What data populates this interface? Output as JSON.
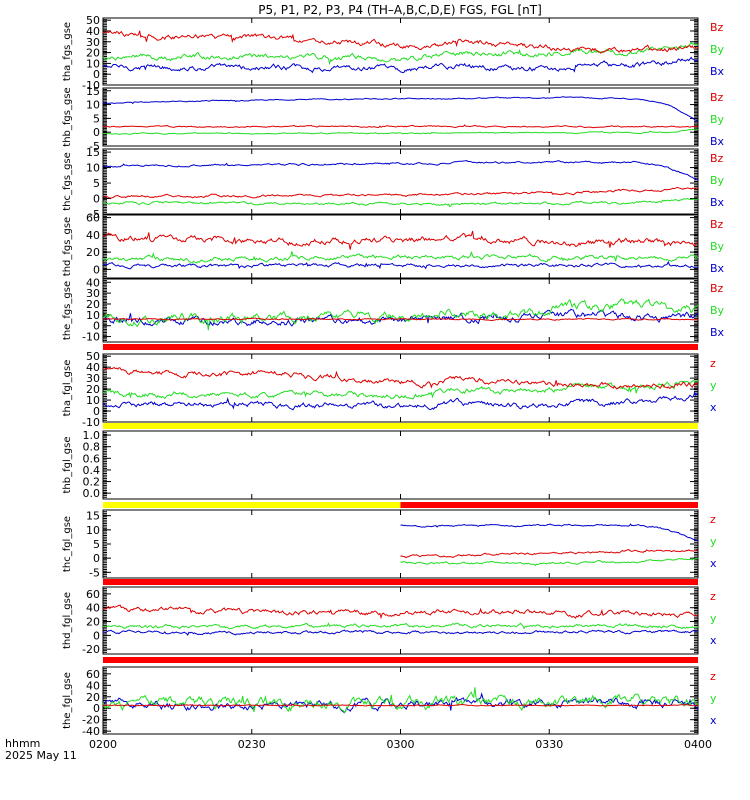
{
  "page": {
    "title": "P5,  P1,  P2,  P3,  P4  (TH–A,B,C,D,E)  FGS,  FGL  [nT]",
    "x_title_line1": "hhmm",
    "x_title_line2": "2025 May 11"
  },
  "colors": {
    "x": "#0000cc",
    "y": "#22dd22",
    "z": "#dd0000",
    "bar_red": "#ff0000",
    "bar_yellow": "#ffff00"
  },
  "chart_data": {
    "type": "line",
    "x_range": [
      "02:00",
      "04:00"
    ],
    "x_ticks": [
      "0200",
      "0230",
      "0300",
      "0330",
      "0400"
    ],
    "panels": [
      {
        "ylabel": "tha_fgs_gse",
        "ylim": [
          -10,
          52
        ],
        "yticks": [
          -10,
          0,
          10,
          20,
          30,
          40,
          50
        ],
        "legend": [
          "Bz",
          "By",
          "Bx"
        ],
        "series": [
          {
            "name": "Bz",
            "component": "z",
            "x": [
              0,
              0.1,
              0.2,
              0.3,
              0.4,
              0.45,
              0.5,
              0.55,
              0.6,
              0.7,
              0.8,
              0.9,
              1.0
            ],
            "y": [
              38,
              35,
              33,
              34,
              30,
              28,
              27,
              25,
              30,
              26,
              24,
              22,
              25
            ],
            "noise": 2.5
          },
          {
            "name": "By",
            "component": "y",
            "x": [
              0,
              0.2,
              0.4,
              0.5,
              0.6,
              0.7,
              0.8,
              0.9,
              1.0
            ],
            "y": [
              16,
              16,
              15,
              13,
              20,
              18,
              22,
              20,
              28
            ],
            "noise": 2.5
          },
          {
            "name": "Bx",
            "component": "x",
            "x": [
              0,
              0.2,
              0.4,
              0.5,
              0.6,
              0.7,
              0.8,
              0.9,
              1.0
            ],
            "y": [
              7,
              6,
              5,
              4,
              8,
              4,
              8,
              8,
              14
            ],
            "noise": 2.5
          }
        ]
      },
      {
        "ylabel": "thb_fgs_gse",
        "ylim": [
          -5,
          16
        ],
        "yticks": [
          -5,
          0,
          5,
          10,
          15
        ],
        "legend": [
          "Bz",
          "By",
          "Bx"
        ],
        "series": [
          {
            "name": "Bz",
            "component": "z",
            "x": [
              0,
              0.2,
              0.4,
              0.6,
              0.8,
              0.95,
              1.0
            ],
            "y": [
              2,
              2,
              2,
              2,
              2,
              2,
              2
            ],
            "noise": 0.25
          },
          {
            "name": "By",
            "component": "y",
            "x": [
              0,
              0.2,
              0.4,
              0.6,
              0.8,
              0.95,
              1.0
            ],
            "y": [
              -0.5,
              -0.4,
              -0.4,
              -0.3,
              -0.2,
              0,
              1
            ],
            "noise": 0.2
          },
          {
            "name": "Bx",
            "component": "x",
            "x": [
              0,
              0.2,
              0.4,
              0.6,
              0.8,
              0.9,
              0.95,
              1.0
            ],
            "y": [
              10.5,
              11.5,
              12,
              12.2,
              12.6,
              12,
              10,
              4
            ],
            "noise": 0.2
          }
        ]
      },
      {
        "ylabel": "thc_fgs_gse",
        "ylim": [
          -5,
          16
        ],
        "yticks": [
          -5,
          0,
          5,
          10,
          15
        ],
        "legend": [
          "Bz",
          "By",
          "Bx"
        ],
        "series": [
          {
            "name": "Bz",
            "component": "z",
            "x": [
              0,
              0.3,
              0.6,
              0.8,
              0.9,
              1.0
            ],
            "y": [
              0.5,
              1,
              1.5,
              2,
              2.5,
              3
            ],
            "noise": 0.4
          },
          {
            "name": "By",
            "component": "y",
            "x": [
              0,
              0.3,
              0.6,
              0.8,
              0.9,
              1.0
            ],
            "y": [
              -1.5,
              -1.5,
              -1.8,
              -1.5,
              -1.2,
              0
            ],
            "noise": 0.4
          },
          {
            "name": "Bx",
            "component": "x",
            "x": [
              0,
              0.3,
              0.6,
              0.8,
              0.9,
              0.95,
              1.0
            ],
            "y": [
              10.5,
              11,
              11.5,
              11.8,
              11.5,
              10,
              6
            ],
            "noise": 0.3
          }
        ]
      },
      {
        "ylabel": "thd_fgs_gse",
        "ylim": [
          -10,
          63
        ],
        "yticks": [
          0,
          20,
          40,
          60
        ],
        "legend": [
          "Bz",
          "By",
          "Bx"
        ],
        "series": [
          {
            "name": "Bz",
            "component": "z",
            "x": [
              0,
              0.2,
              0.3,
              0.4,
              0.5,
              0.6,
              0.7,
              0.8,
              0.9,
              1.0
            ],
            "y": [
              38,
              35,
              32,
              34,
              33,
              36,
              34,
              30,
              32,
              28
            ],
            "noise": 3.5
          },
          {
            "name": "By",
            "component": "y",
            "x": [
              0,
              0.2,
              0.4,
              0.6,
              0.8,
              1.0
            ],
            "y": [
              12,
              12,
              14,
              14,
              14,
              13
            ],
            "noise": 2.5
          },
          {
            "name": "Bx",
            "component": "x",
            "x": [
              0,
              0.2,
              0.4,
              0.6,
              0.8,
              1.0
            ],
            "y": [
              5,
              3,
              5,
              4,
              5,
              5
            ],
            "noise": 2
          }
        ]
      },
      {
        "ylabel": "the_fgs_gse",
        "ylim": [
          -15,
          43
        ],
        "yticks": [
          -10,
          0,
          10,
          20,
          30,
          40
        ],
        "legend": [
          "Bz",
          "By",
          "Bx"
        ],
        "series": [
          {
            "name": "Bz",
            "component": "z",
            "x": [
              0,
              0.2,
              0.4,
              0.6,
              0.8,
              1.0
            ],
            "y": [
              6,
              6,
              6,
              6,
              6,
              6
            ],
            "noise": 0.6
          },
          {
            "name": "By",
            "component": "y",
            "x": [
              0,
              0.2,
              0.4,
              0.5,
              0.6,
              0.7,
              0.8,
              0.9,
              1.0
            ],
            "y": [
              7,
              6,
              8,
              9,
              11,
              12,
              17,
              18,
              14
            ],
            "noise": 4
          },
          {
            "name": "Bx",
            "component": "x",
            "x": [
              0,
              0.2,
              0.4,
              0.5,
              0.6,
              0.7,
              0.8,
              0.9,
              1.0
            ],
            "y": [
              6,
              3,
              5,
              6,
              7,
              8,
              10,
              9,
              8
            ],
            "noise": 3.5
          }
        ]
      },
      {
        "ylabel": "tha_fgl_gse",
        "ylim": [
          -10,
          52
        ],
        "yticks": [
          -10,
          0,
          10,
          20,
          30,
          40,
          50
        ],
        "legend": [
          "z",
          "y",
          "x"
        ],
        "series": [
          {
            "name": "z",
            "component": "z",
            "x": [
              0,
              0.1,
              0.2,
              0.3,
              0.4,
              0.45,
              0.5,
              0.55,
              0.6,
              0.7,
              0.8,
              0.9,
              1.0
            ],
            "y": [
              38,
              35,
              33,
              34,
              30,
              28,
              27,
              25,
              30,
              26,
              24,
              22,
              25
            ],
            "noise": 2.5
          },
          {
            "name": "y",
            "component": "y",
            "x": [
              0,
              0.2,
              0.4,
              0.5,
              0.6,
              0.7,
              0.8,
              0.9,
              1.0
            ],
            "y": [
              16,
              16,
              15,
              13,
              20,
              18,
              22,
              20,
              28
            ],
            "noise": 2.5
          },
          {
            "name": "x",
            "component": "x",
            "x": [
              0,
              0.2,
              0.4,
              0.5,
              0.6,
              0.7,
              0.8,
              0.9,
              1.0
            ],
            "y": [
              7,
              6,
              5,
              4,
              8,
              4,
              8,
              8,
              14
            ],
            "noise": 2.5
          }
        ]
      },
      {
        "ylabel": "thb_fgl_gse",
        "ylim": [
          -0.1,
          1.07
        ],
        "yticks": [
          0.0,
          0.2,
          0.4,
          0.6,
          0.8,
          1.0
        ],
        "legend": [],
        "series": []
      },
      {
        "ylabel": "thc_fgl_gse",
        "ylim": [
          -7,
          17
        ],
        "yticks": [
          -5,
          0,
          5,
          10,
          15
        ],
        "legend": [
          "z",
          "y",
          "x"
        ],
        "series": [
          {
            "name": "z",
            "component": "z",
            "x": [
              0.5,
              0.6,
              0.8,
              0.9,
              1.0
            ],
            "y": [
              0.5,
              1,
              2,
              2.5,
              3
            ],
            "noise": 0.4
          },
          {
            "name": "y",
            "component": "y",
            "x": [
              0.5,
              0.6,
              0.8,
              0.9,
              1.0
            ],
            "y": [
              -1.5,
              -1.8,
              -1.5,
              -1.2,
              0
            ],
            "noise": 0.4
          },
          {
            "name": "x",
            "component": "x",
            "x": [
              0.5,
              0.6,
              0.8,
              0.9,
              0.95,
              1.0
            ],
            "y": [
              11.5,
              11.5,
              11.8,
              11.5,
              10,
              6
            ],
            "noise": 0.3
          }
        ]
      },
      {
        "ylabel": "thd_fgl_gse",
        "ylim": [
          -27,
          70
        ],
        "yticks": [
          -20,
          0,
          20,
          40,
          60
        ],
        "legend": [
          "z",
          "y",
          "x"
        ],
        "series": [
          {
            "name": "z",
            "component": "z",
            "x": [
              0,
              0.2,
              0.3,
              0.4,
              0.5,
              0.6,
              0.7,
              0.8,
              0.9,
              1.0
            ],
            "y": [
              38,
              35,
              32,
              34,
              33,
              36,
              34,
              30,
              32,
              28
            ],
            "noise": 3.5
          },
          {
            "name": "y",
            "component": "y",
            "x": [
              0,
              0.2,
              0.4,
              0.6,
              0.8,
              1.0
            ],
            "y": [
              12,
              12,
              14,
              14,
              14,
              13
            ],
            "noise": 2.5
          },
          {
            "name": "x",
            "component": "x",
            "x": [
              0,
              0.2,
              0.4,
              0.6,
              0.8,
              1.0
            ],
            "y": [
              5,
              3,
              5,
              4,
              5,
              5
            ],
            "noise": 2
          }
        ]
      },
      {
        "ylabel": "the_fgl_gse",
        "ylim": [
          -45,
          72
        ],
        "yticks": [
          -40,
          -20,
          0,
          20,
          40,
          60
        ],
        "legend": [
          "z",
          "y",
          "x"
        ],
        "series": [
          {
            "name": "z",
            "component": "z",
            "x": [
              0,
              0.5,
              1.0
            ],
            "y": [
              5,
              5,
              5
            ],
            "noise": 0.8
          },
          {
            "name": "y",
            "component": "y",
            "x": [
              0,
              0.2,
              0.4,
              0.5,
              0.6,
              0.7,
              0.8,
              0.9,
              1.0
            ],
            "y": [
              7,
              6,
              7,
              8,
              10,
              10,
              12,
              12,
              10
            ],
            "noise": 9
          },
          {
            "name": "x",
            "component": "x",
            "x": [
              0,
              0.2,
              0.4,
              0.5,
              0.6,
              0.7,
              0.8,
              0.9,
              1.0
            ],
            "y": [
              6,
              3,
              5,
              6,
              7,
              8,
              10,
              9,
              8
            ],
            "noise": 7
          }
        ]
      }
    ],
    "bars": [
      {
        "segments": [
          {
            "x0": 0,
            "x1": 1,
            "color": "red"
          }
        ]
      },
      {
        "segments": [
          {
            "x0": 0,
            "x1": 1,
            "color": "yellow"
          }
        ]
      },
      {
        "segments": [
          {
            "x0": 0,
            "x1": 0.5,
            "color": "yellow"
          },
          {
            "x0": 0.5,
            "x1": 1,
            "color": "red"
          }
        ]
      },
      {
        "segments": [
          {
            "x0": 0,
            "x1": 1,
            "color": "red"
          }
        ]
      },
      {
        "segments": [
          {
            "x0": 0,
            "x1": 1,
            "color": "red"
          }
        ]
      }
    ]
  }
}
